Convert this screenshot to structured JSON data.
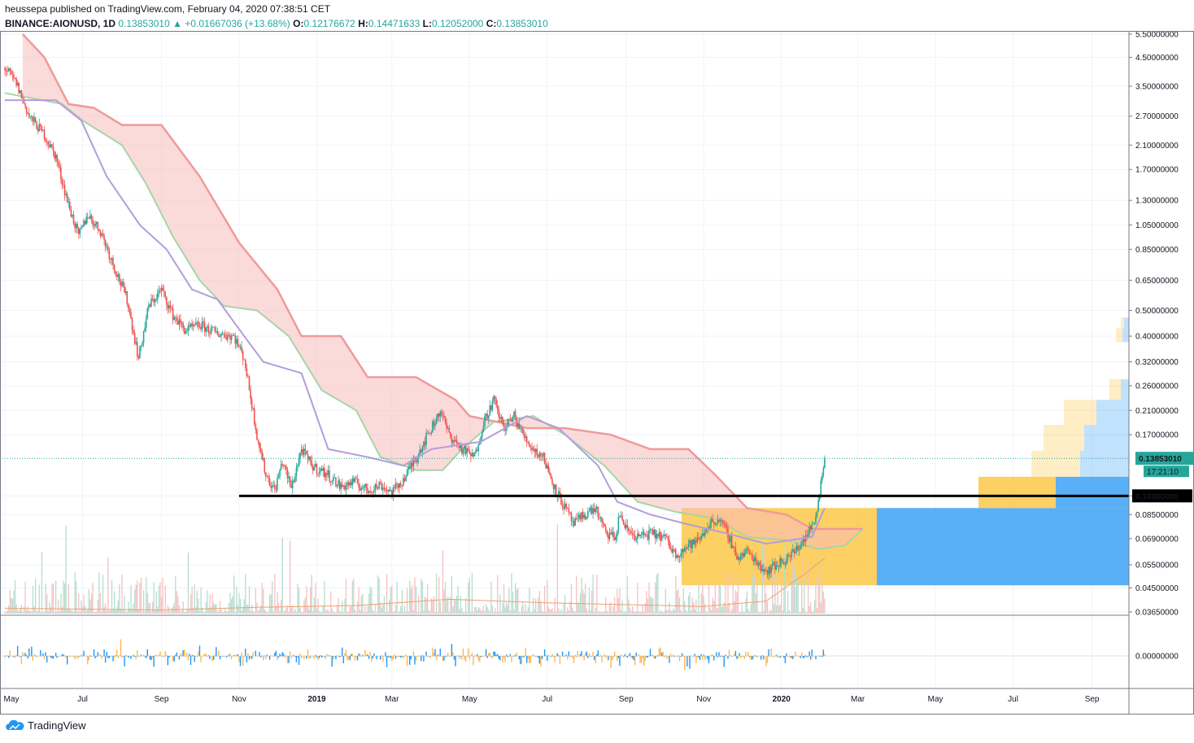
{
  "header": {
    "published_line": "heussepa published on TradingView.com, February 04, 2020 07:38:51 CET",
    "symbol": "BINANCE:AIONUSD, 1D",
    "last": "0.13853010",
    "change": "▲ +0.01667036 (+13.68%)",
    "o_label": "O:",
    "o_value": "0.12176672",
    "h_label": "H:",
    "h_value": "0.14471633",
    "l_label": "L:",
    "l_value": "0.12052000",
    "c_label": "C:",
    "c_value": "0.13853010"
  },
  "footer": {
    "brand": "TradingView",
    "logo_icon": "tradingview-cloud-icon"
  },
  "colors": {
    "up": "#26a69a",
    "down": "#ef5350",
    "cloud_red": "#f8bcbc",
    "cloud_green": "#c8ecc8",
    "span_a": "#a5d6a7",
    "span_b": "#ef9a9a",
    "base_line": "#b39ddb",
    "vol_up": "#b7ddd0",
    "vol_down": "#f5c2c2",
    "ma_orange": "#f0a070",
    "osc_blue": "#2196f3",
    "osc_orange": "#ffb74d",
    "profile_yellow": "#fbc02d",
    "profile_blue": "#2196f3"
  },
  "chart_data": {
    "type": "candlestick",
    "log_scale": true,
    "y_ticks": [
      "5.50000000",
      "4.50000000",
      "3.50000000",
      "2.70000000",
      "2.10000000",
      "1.70000000",
      "1.30000000",
      "1.05000000",
      "0.85000000",
      "0.65000000",
      "0.50000000",
      "0.40000000",
      "0.32000000",
      "0.26000000",
      "0.21000000",
      "0.17000000",
      "0.10000000",
      "0.08500000",
      "0.06900000",
      "0.05500000",
      "0.04500000",
      "0.03650000"
    ],
    "ylim": [
      0.0365,
      5.5
    ],
    "x_ticks": [
      "May",
      "Jul",
      "Sep",
      "Nov",
      "2019",
      "Mar",
      "May",
      "Jul",
      "Sep",
      "Nov",
      "2020",
      "Mar",
      "May",
      "Jul",
      "Sep"
    ],
    "x_ticks_bold": [
      "2019",
      "2020"
    ],
    "xlim": [
      "2018-05-01",
      "2020-09-30"
    ],
    "last_price_label": "0.13853010",
    "countdown_label": "17:21:10",
    "support_level": 0.1,
    "support_label": "0.10000000",
    "support_start": "2018-11-01",
    "close_path": [
      [
        "2018-05-01",
        4.1
      ],
      [
        "2018-05-10",
        3.6
      ],
      [
        "2018-05-20",
        2.7
      ],
      [
        "2018-06-01",
        2.3
      ],
      [
        "2018-06-10",
        1.9
      ],
      [
        "2018-06-20",
        1.25
      ],
      [
        "2018-06-28",
        0.95
      ],
      [
        "2018-07-05",
        1.15
      ],
      [
        "2018-07-15",
        1.0
      ],
      [
        "2018-07-25",
        0.75
      ],
      [
        "2018-08-05",
        0.55
      ],
      [
        "2018-08-14",
        0.33
      ],
      [
        "2018-08-22",
        0.52
      ],
      [
        "2018-09-01",
        0.6
      ],
      [
        "2018-09-10",
        0.48
      ],
      [
        "2018-09-20",
        0.42
      ],
      [
        "2018-10-01",
        0.44
      ],
      [
        "2018-10-15",
        0.41
      ],
      [
        "2018-10-28",
        0.4
      ],
      [
        "2018-11-05",
        0.33
      ],
      [
        "2018-11-15",
        0.17
      ],
      [
        "2018-11-22",
        0.12
      ],
      [
        "2018-11-29",
        0.105
      ],
      [
        "2018-12-05",
        0.135
      ],
      [
        "2018-12-12",
        0.107
      ],
      [
        "2018-12-20",
        0.15
      ],
      [
        "2018-12-28",
        0.13
      ],
      [
        "2019-01-10",
        0.12
      ],
      [
        "2019-01-20",
        0.108
      ],
      [
        "2019-01-30",
        0.113
      ],
      [
        "2019-02-10",
        0.105
      ],
      [
        "2019-02-20",
        0.11
      ],
      [
        "2019-03-01",
        0.103
      ],
      [
        "2019-03-10",
        0.115
      ],
      [
        "2019-03-20",
        0.14
      ],
      [
        "2019-04-01",
        0.18
      ],
      [
        "2019-04-08",
        0.21
      ],
      [
        "2019-04-15",
        0.17
      ],
      [
        "2019-04-25",
        0.15
      ],
      [
        "2019-05-05",
        0.14
      ],
      [
        "2019-05-12",
        0.19
      ],
      [
        "2019-05-20",
        0.23
      ],
      [
        "2019-05-28",
        0.18
      ],
      [
        "2019-06-05",
        0.2
      ],
      [
        "2019-06-12",
        0.17
      ],
      [
        "2019-06-20",
        0.15
      ],
      [
        "2019-06-28",
        0.14
      ],
      [
        "2019-07-06",
        0.11
      ],
      [
        "2019-07-14",
        0.092
      ],
      [
        "2019-07-22",
        0.078
      ],
      [
        "2019-07-30",
        0.085
      ],
      [
        "2019-08-08",
        0.09
      ],
      [
        "2019-08-16",
        0.072
      ],
      [
        "2019-08-24",
        0.07
      ],
      [
        "2019-08-27",
        0.086
      ],
      [
        "2019-09-01",
        0.075
      ],
      [
        "2019-09-10",
        0.07
      ],
      [
        "2019-09-20",
        0.072
      ],
      [
        "2019-10-01",
        0.07
      ],
      [
        "2019-10-10",
        0.06
      ],
      [
        "2019-10-20",
        0.065
      ],
      [
        "2019-10-28",
        0.068
      ],
      [
        "2019-11-05",
        0.078
      ],
      [
        "2019-11-12",
        0.082
      ],
      [
        "2019-11-20",
        0.072
      ],
      [
        "2019-11-28",
        0.058
      ],
      [
        "2019-12-05",
        0.062
      ],
      [
        "2019-12-12",
        0.057
      ],
      [
        "2019-12-20",
        0.052
      ],
      [
        "2019-12-28",
        0.055
      ],
      [
        "2020-01-05",
        0.058
      ],
      [
        "2020-01-12",
        0.062
      ],
      [
        "2020-01-20",
        0.07
      ],
      [
        "2020-01-27",
        0.08
      ],
      [
        "2020-02-01",
        0.112
      ],
      [
        "2020-02-04",
        0.1385
      ]
    ],
    "ichimoku": {
      "span_a": [
        [
          "2018-05-01",
          3.3
        ],
        [
          "2018-06-15",
          3.0
        ],
        [
          "2018-07-01",
          2.6
        ],
        [
          "2018-08-01",
          2.1
        ],
        [
          "2018-08-20",
          1.5
        ],
        [
          "2018-09-10",
          0.95
        ],
        [
          "2018-10-01",
          0.65
        ],
        [
          "2018-10-20",
          0.52
        ],
        [
          "2018-11-15",
          0.5
        ],
        [
          "2018-12-10",
          0.4
        ],
        [
          "2019-01-05",
          0.25
        ],
        [
          "2019-02-01",
          0.21
        ],
        [
          "2019-02-20",
          0.14
        ],
        [
          "2019-03-20",
          0.125
        ],
        [
          "2019-04-10",
          0.125
        ],
        [
          "2019-04-25",
          0.15
        ],
        [
          "2019-05-20",
          0.19
        ],
        [
          "2019-06-20",
          0.2
        ],
        [
          "2019-07-15",
          0.17
        ],
        [
          "2019-08-15",
          0.13
        ],
        [
          "2019-09-10",
          0.095
        ],
        [
          "2019-10-10",
          0.087
        ],
        [
          "2019-11-10",
          0.082
        ],
        [
          "2019-12-05",
          0.07
        ],
        [
          "2020-01-05",
          0.068
        ],
        [
          "2020-01-30",
          0.063
        ],
        [
          "2020-02-20",
          0.065
        ],
        [
          "2020-03-05",
          0.075
        ]
      ],
      "span_b": [
        [
          "2018-05-15",
          5.5
        ],
        [
          "2018-06-01",
          4.5
        ],
        [
          "2018-06-20",
          3.0
        ],
        [
          "2018-07-10",
          2.9
        ],
        [
          "2018-08-01",
          2.5
        ],
        [
          "2018-09-01",
          2.5
        ],
        [
          "2018-10-01",
          1.6
        ],
        [
          "2018-11-01",
          0.9
        ],
        [
          "2018-12-01",
          0.6
        ],
        [
          "2018-12-20",
          0.4
        ],
        [
          "2019-01-20",
          0.4
        ],
        [
          "2019-02-10",
          0.28
        ],
        [
          "2019-03-20",
          0.28
        ],
        [
          "2019-04-20",
          0.23
        ],
        [
          "2019-05-01",
          0.2
        ],
        [
          "2019-06-15",
          0.18
        ],
        [
          "2019-07-15",
          0.18
        ],
        [
          "2019-08-20",
          0.17
        ],
        [
          "2019-09-20",
          0.15
        ],
        [
          "2019-10-20",
          0.15
        ],
        [
          "2019-11-10",
          0.12
        ],
        [
          "2019-12-05",
          0.09
        ],
        [
          "2020-01-05",
          0.085
        ],
        [
          "2020-01-25",
          0.075
        ],
        [
          "2020-03-05",
          0.075
        ]
      ],
      "base_line": [
        [
          "2018-05-01",
          3.1
        ],
        [
          "2018-06-10",
          3.1
        ],
        [
          "2018-06-30",
          2.6
        ],
        [
          "2018-07-20",
          1.6
        ],
        [
          "2018-08-15",
          1.05
        ],
        [
          "2018-09-05",
          0.85
        ],
        [
          "2018-09-25",
          0.6
        ],
        [
          "2018-10-15",
          0.55
        ],
        [
          "2018-11-05",
          0.4
        ],
        [
          "2018-11-20",
          0.32
        ],
        [
          "2018-12-20",
          0.29
        ],
        [
          "2019-01-10",
          0.15
        ],
        [
          "2019-02-10",
          0.14
        ],
        [
          "2019-03-10",
          0.13
        ],
        [
          "2019-04-01",
          0.15
        ],
        [
          "2019-05-10",
          0.16
        ],
        [
          "2019-06-15",
          0.2
        ],
        [
          "2019-07-10",
          0.18
        ],
        [
          "2019-08-10",
          0.13
        ],
        [
          "2019-08-25",
          0.095
        ],
        [
          "2019-09-20",
          0.085
        ],
        [
          "2019-10-20",
          0.078
        ],
        [
          "2019-11-20",
          0.072
        ],
        [
          "2019-12-20",
          0.066
        ],
        [
          "2020-01-25",
          0.07
        ],
        [
          "2020-02-04",
          0.09
        ]
      ]
    },
    "volume_bars": true,
    "volume_ma": [
      [
        "2018-05-01",
        0.06
      ],
      [
        "2018-09-01",
        0.04
      ],
      [
        "2018-11-15",
        0.07
      ],
      [
        "2019-02-01",
        0.09
      ],
      [
        "2019-04-15",
        0.16
      ],
      [
        "2019-07-01",
        0.12
      ],
      [
        "2019-09-01",
        0.1
      ],
      [
        "2019-11-01",
        0.08
      ],
      [
        "2019-12-20",
        0.14
      ],
      [
        "2020-01-20",
        0.45
      ],
      [
        "2020-02-04",
        0.62
      ]
    ],
    "volume_profile": [
      {
        "low": 0.046,
        "high": 0.09,
        "up": 240,
        "down": 310
      },
      {
        "low": 0.09,
        "high": 0.118,
        "up": 95,
        "down": 90
      },
      {
        "low": 0.118,
        "high": 0.148,
        "up": 60,
        "down": 60
      },
      {
        "low": 0.148,
        "high": 0.185,
        "up": 50,
        "down": 55
      },
      {
        "low": 0.185,
        "high": 0.23,
        "up": 40,
        "down": 40
      },
      {
        "low": 0.23,
        "high": 0.275,
        "up": 14,
        "down": 10
      },
      {
        "low": 0.38,
        "high": 0.43,
        "up": 8,
        "down": 8
      },
      {
        "low": 0.43,
        "high": 0.47,
        "up": 4,
        "down": 6
      }
    ],
    "profile_right_edge": "2020-09-30",
    "oscillator": {
      "zero_label": "0.00000000"
    }
  }
}
